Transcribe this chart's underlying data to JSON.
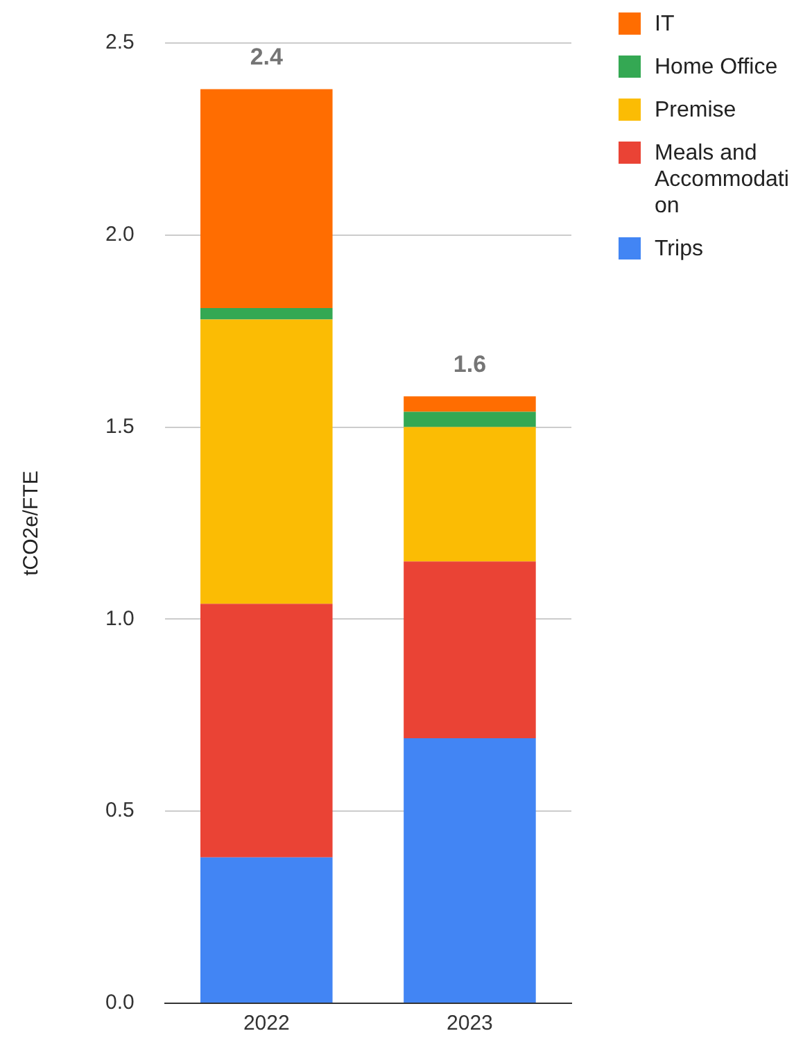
{
  "chart_data": {
    "type": "bar",
    "stacked": true,
    "categories": [
      "2022",
      "2023"
    ],
    "ylabel": "tCO2e/FTE",
    "series": [
      {
        "name": "Trips",
        "color": "#4285f4",
        "values": [
          0.38,
          0.69
        ]
      },
      {
        "name": "Meals and Accommodation",
        "color": "#ea4335",
        "values": [
          0.66,
          0.46
        ]
      },
      {
        "name": "Premise",
        "color": "#fbbc04",
        "values": [
          0.74,
          0.35
        ]
      },
      {
        "name": "Home Office",
        "color": "#34a853",
        "values": [
          0.03,
          0.04
        ]
      },
      {
        "name": "IT",
        "color": "#ff6d01",
        "values": [
          0.57,
          0.04
        ]
      }
    ],
    "ylim": [
      0,
      2.5
    ],
    "yticks": [
      {
        "value": 0,
        "label": "0.0"
      },
      {
        "value": 0.5,
        "label": "0.5"
      },
      {
        "value": 1,
        "label": "1.0"
      },
      {
        "value": 1.5,
        "label": "1.5"
      },
      {
        "value": 2,
        "label": "2.0"
      },
      {
        "value": 2.5,
        "label": "2.5"
      }
    ],
    "grid": "y",
    "legend": "right",
    "totals": [
      "2.4",
      "1.6"
    ]
  }
}
